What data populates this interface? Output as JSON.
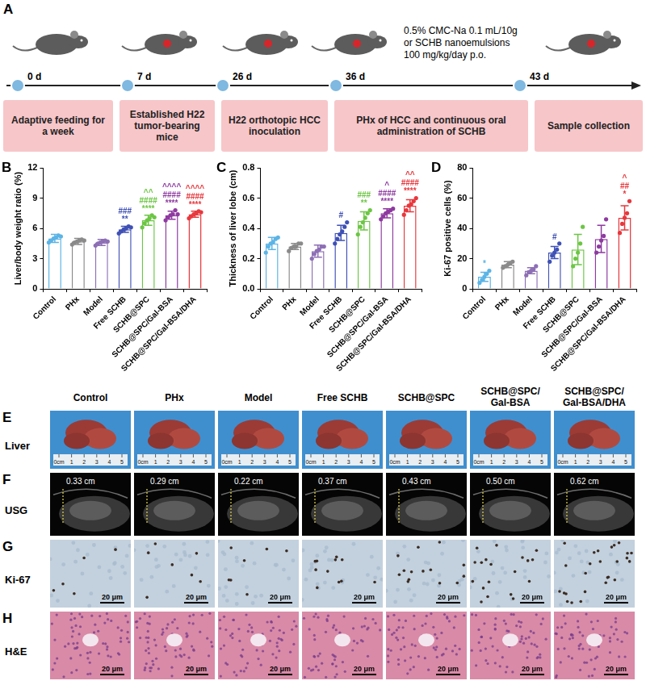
{
  "panel_a": {
    "letter": "A",
    "timeline": [
      {
        "day": "0 d",
        "stage": "Adaptive feeding for a week"
      },
      {
        "day": "7 d",
        "stage": "Established H22 tumor-bearing mice"
      },
      {
        "day": "26 d",
        "stage": "H22 orthotopic HCC inoculation"
      },
      {
        "day": "36 d",
        "stage": "PHx of HCC and continuous oral administration of SCHB"
      },
      {
        "day": "43 d",
        "stage": "Sample collection"
      }
    ],
    "dosing_note": [
      "0.5% CMC-Na 0.1 mL/10g",
      "or SCHB nanoemulsions",
      "100 mg/kg/day p.o."
    ]
  },
  "chart_data": [
    {
      "panel": "B",
      "type": "bar",
      "y_label": "Liver/body weight ratio (%)",
      "categories": [
        "Control",
        "PHx",
        "Model",
        "Free SCHB",
        "SCHB@SPC",
        "SCHB@SPC/Gal-BSA",
        "SCHB@SPC/Gal-BSA/DHA"
      ],
      "values": [
        5.0,
        4.7,
        4.6,
        5.9,
        6.8,
        7.3,
        7.4
      ],
      "sd": [
        0.4,
        0.3,
        0.3,
        0.3,
        0.5,
        0.4,
        0.3
      ],
      "points": [
        [
          4.6,
          4.8,
          5.0,
          5.1,
          5.3,
          5.2
        ],
        [
          4.4,
          4.6,
          4.7,
          4.8,
          4.9,
          4.8
        ],
        [
          4.3,
          4.5,
          4.6,
          4.7,
          4.8,
          4.7
        ],
        [
          5.5,
          5.7,
          5.9,
          6.0,
          6.2,
          6.1
        ],
        [
          6.1,
          6.5,
          6.8,
          7.0,
          7.3,
          7.1
        ],
        [
          6.8,
          7.1,
          7.3,
          7.4,
          7.8,
          7.4
        ],
        [
          7.0,
          7.2,
          7.4,
          7.5,
          7.7,
          7.6
        ]
      ],
      "significance": [
        [],
        [],
        [],
        [
          "###",
          "**"
        ],
        [
          "^^",
          "####",
          "****"
        ],
        [
          "^^^^",
          "####",
          "****"
        ],
        [
          "^^^^",
          "####",
          "****"
        ]
      ],
      "colors": [
        "#5bb4e5",
        "#8a8a8a",
        "#8d6fb5",
        "#3f51b5",
        "#6cc644",
        "#8e3aa0",
        "#e8383d"
      ],
      "ylim": [
        0,
        12
      ],
      "yticks": [
        0,
        3,
        6,
        9,
        12
      ],
      "grid": false
    },
    {
      "panel": "C",
      "type": "bar",
      "y_label": "Thickness of liver lobe (cm)",
      "categories": [
        "Control",
        "PHx",
        "Model",
        "Free SCHB",
        "SCHB@SPC",
        "SCHB@SPC/Gal-BSA",
        "SCHB@SPC/Gal-BSA/DHA"
      ],
      "values": [
        0.3,
        0.28,
        0.25,
        0.37,
        0.45,
        0.5,
        0.55
      ],
      "sd": [
        0.04,
        0.02,
        0.04,
        0.05,
        0.06,
        0.03,
        0.04
      ],
      "points": [
        [
          0.24,
          0.28,
          0.3,
          0.31,
          0.33,
          0.34
        ],
        [
          0.25,
          0.27,
          0.28,
          0.28,
          0.3,
          0.3
        ],
        [
          0.2,
          0.23,
          0.25,
          0.26,
          0.28,
          0.28
        ],
        [
          0.3,
          0.33,
          0.36,
          0.38,
          0.41,
          0.44
        ],
        [
          0.36,
          0.41,
          0.44,
          0.47,
          0.5,
          0.52
        ],
        [
          0.46,
          0.48,
          0.5,
          0.51,
          0.52,
          0.53
        ],
        [
          0.49,
          0.52,
          0.55,
          0.56,
          0.58,
          0.6
        ]
      ],
      "significance": [
        [],
        [],
        [],
        [
          "#"
        ],
        [
          "###",
          "**"
        ],
        [
          "^",
          "####",
          "****"
        ],
        [
          "^^",
          "####",
          "****"
        ]
      ],
      "colors": [
        "#5bb4e5",
        "#8a8a8a",
        "#8d6fb5",
        "#3f51b5",
        "#6cc644",
        "#8e3aa0",
        "#e8383d"
      ],
      "ylim": [
        0,
        0.8
      ],
      "yticks": [
        {
          "value": 0,
          "label": "0.0"
        },
        0.2,
        0.4,
        0.6,
        0.8
      ],
      "grid": false
    },
    {
      "panel": "D",
      "type": "bar",
      "y_label": "Ki-67 positive cells (%)",
      "categories": [
        "Control",
        "PHx",
        "Model",
        "Free SCHB",
        "SCHB@SPC",
        "SCHB@SPC/Gal-BSA",
        "SCHB@SPC/Gal-BSA/DHA"
      ],
      "values": [
        8,
        16,
        12,
        24,
        26,
        33,
        47
      ],
      "sd": [
        3,
        2,
        2,
        4,
        10,
        9,
        8
      ],
      "points": [
        [
          4,
          6,
          8,
          10,
          12
        ],
        [
          14,
          15,
          16,
          17,
          18
        ],
        [
          9,
          11,
          12,
          13,
          15
        ],
        [
          18,
          22,
          24,
          26,
          30
        ],
        [
          15,
          20,
          24,
          30,
          41
        ],
        [
          24,
          28,
          32,
          35,
          46
        ],
        [
          37,
          43,
          47,
          50,
          58
        ]
      ],
      "significance": [
        [
          "*"
        ],
        [],
        [],
        [
          "#"
        ],
        [],
        [],
        [
          "^",
          "##",
          "*"
        ]
      ],
      "colors": [
        "#5bb4e5",
        "#8a8a8a",
        "#8d6fb5",
        "#3f51b5",
        "#6cc644",
        "#8e3aa0",
        "#e8383d"
      ],
      "ylim": [
        0,
        80
      ],
      "yticks": [
        0,
        20,
        40,
        60,
        80
      ],
      "grid": false
    }
  ],
  "image_panels": {
    "columns": [
      "Control",
      "PHx",
      "Model",
      "Free SCHB",
      "SCHB@SPC",
      "SCHB@SPC/Gal-BSA",
      "SCHB@SPC/Gal-BSA/DHA"
    ],
    "rows": [
      {
        "letter": "E",
        "label": "Liver",
        "ruler_labels": [
          "0cm",
          "1",
          "2",
          "3",
          "4",
          "5"
        ]
      },
      {
        "letter": "F",
        "label": "USG",
        "measurements": [
          "0.33 cm",
          "0.29 cm",
          "0.22 cm",
          "0.37 cm",
          "0.43 cm",
          "0.50 cm",
          "0.62 cm"
        ]
      },
      {
        "letter": "G",
        "label": "Ki-67",
        "scale_bar": "20 μm"
      },
      {
        "letter": "H",
        "label": "H&E",
        "scale_bar": "20 μm"
      }
    ]
  }
}
